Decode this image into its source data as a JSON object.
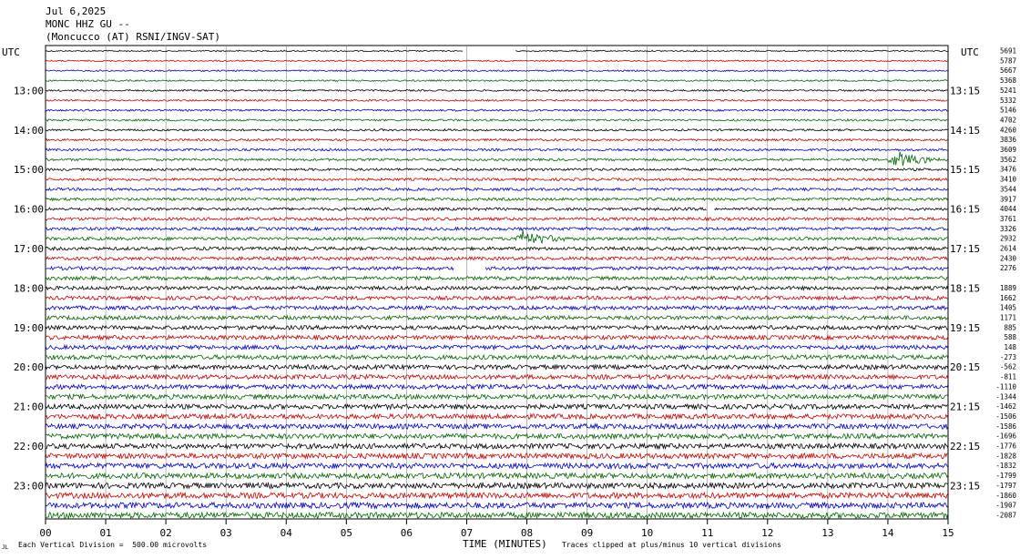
{
  "header": {
    "date": "Jul 6,2025",
    "station": "MONC HHZ GU --",
    "network": "(Moncucco (AT) RSNI/INGV-SAT)"
  },
  "footer": {
    "vertical_division": "Each Vertical Division =  500.00 microvolts",
    "clip_note": "Traces clipped at plus/minus 10 vertical divisions",
    "corner_mark": "JL"
  },
  "colors": {
    "black": "#000000",
    "red": "#cc0000",
    "blue": "#0000cc",
    "green": "#006600",
    "grid": "#888888"
  },
  "chart_data": {
    "type": "line",
    "title": "",
    "xlabel": "TIME (MINUTES)",
    "ylabel": "UTC",
    "xlim": [
      0,
      15
    ],
    "x_ticks": [
      "00",
      "01",
      "02",
      "03",
      "04",
      "05",
      "06",
      "07",
      "08",
      "09",
      "10",
      "11",
      "12",
      "13",
      "14",
      "15"
    ],
    "left_axis_label": "UTC",
    "right_axis_label": "UTC",
    "left_ticks": [
      "13:00",
      "14:00",
      "15:00",
      "16:00",
      "17:00",
      "18:00",
      "19:00",
      "20:00",
      "21:00",
      "22:00",
      "23:00"
    ],
    "right_ticks": [
      "13:15",
      "14:15",
      "15:15",
      "16:15",
      "17:15",
      "18:15",
      "19:15",
      "20:15",
      "21:15",
      "22:15",
      "23:15"
    ],
    "trace_color_cycle": [
      "black",
      "red",
      "blue",
      "green"
    ],
    "trace_count": 48,
    "first_trace_start": "12:15",
    "minutes_per_trace": 15,
    "trace_offsets": [
      "5691",
      "5787",
      "5667",
      "5368",
      "5241",
      "5332",
      "5146",
      "4702",
      "4260",
      "3836",
      "3609",
      "3562",
      "3476",
      "3410",
      "3544",
      "3917",
      "4044",
      "3761",
      "3326",
      "2932",
      "2614",
      "2430",
      "2276",
      "",
      "1889",
      "1662",
      "1405",
      "1171",
      "885",
      "588",
      "148",
      "-273",
      "-562",
      "-811",
      "-1110",
      "-1344",
      "-1462",
      "-1506",
      "-1586",
      "-1696",
      "-1776",
      "-1828",
      "-1832",
      "-1799",
      "-1797",
      "-1860",
      "-1907",
      "-2087"
    ],
    "events": [
      {
        "trace_index": 11,
        "minute": 14.0,
        "description": "burst"
      },
      {
        "trace_index": 19,
        "minute": 7.8,
        "description": "burst"
      }
    ],
    "gaps": [
      {
        "trace_index": 0,
        "from": 6.95,
        "to": 7.8
      },
      {
        "trace_index": 16,
        "from": 11.0,
        "to": 11.1
      },
      {
        "trace_index": 22,
        "from": 6.8,
        "to": 7.3
      }
    ]
  }
}
